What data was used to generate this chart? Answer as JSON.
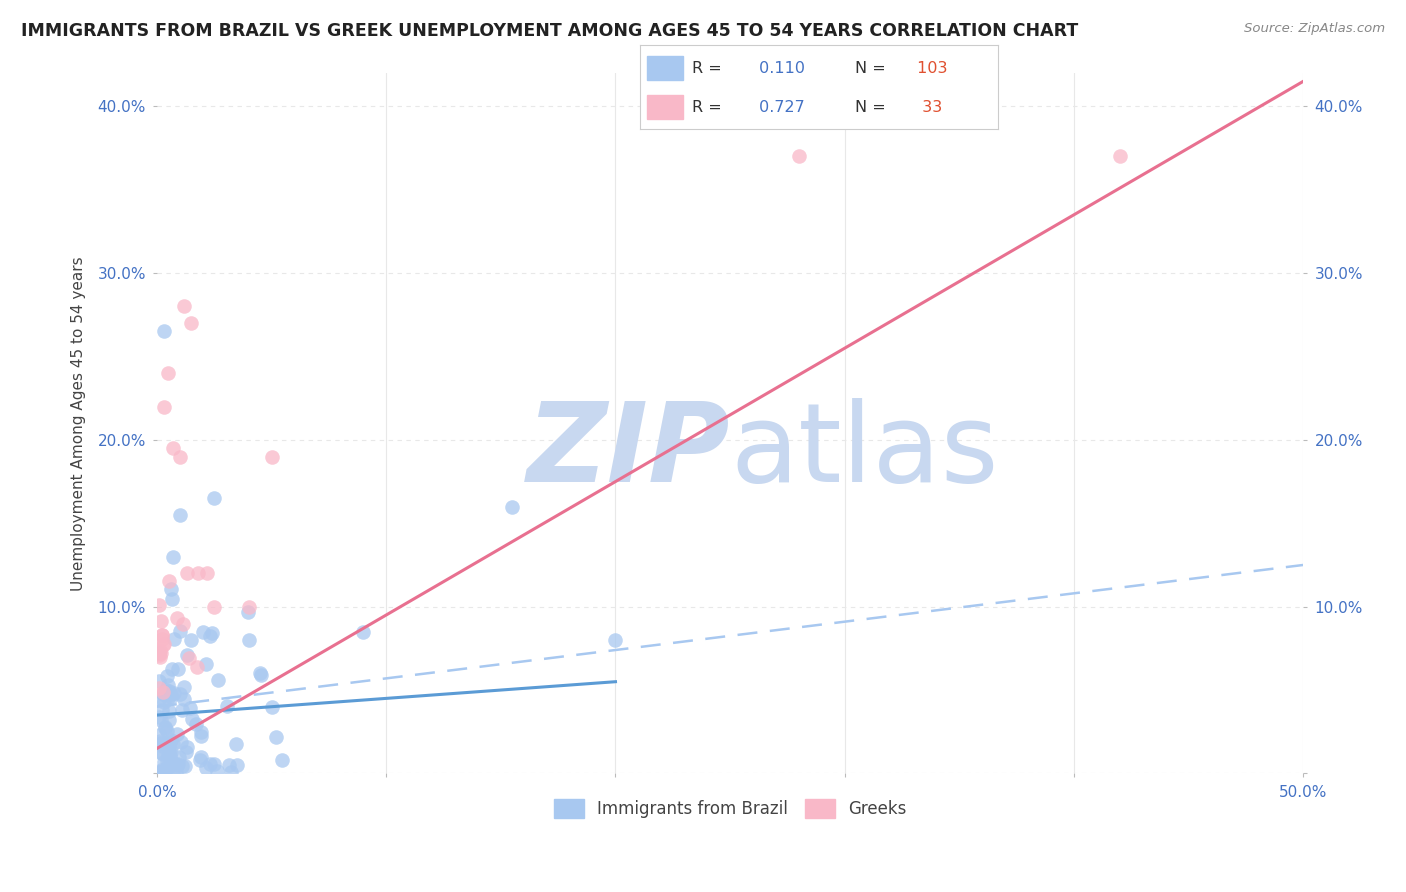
{
  "title": "IMMIGRANTS FROM BRAZIL VS GREEK UNEMPLOYMENT AMONG AGES 45 TO 54 YEARS CORRELATION CHART",
  "source": "Source: ZipAtlas.com",
  "ylabel": "Unemployment Among Ages 45 to 54 years",
  "xlim": [
    0.0,
    0.5
  ],
  "ylim": [
    0.0,
    0.42
  ],
  "xticks": [
    0.0,
    0.1,
    0.2,
    0.3,
    0.4,
    0.5
  ],
  "yticks": [
    0.0,
    0.1,
    0.2,
    0.3,
    0.4
  ],
  "xticklabels": [
    "0.0%",
    "",
    "",
    "",
    "",
    "50.0%"
  ],
  "yticklabels": [
    "",
    "10.0%",
    "20.0%",
    "30.0%",
    "40.0%"
  ],
  "legend_brazil_r": "0.110",
  "legend_brazil_n": "103",
  "legend_greeks_r": "0.727",
  "legend_greeks_n": "33",
  "color_brazil": "#a8c8f0",
  "color_greeks": "#f9b8c8",
  "color_brazil_line": "#5b9bd5",
  "color_greeks_line": "#e87090",
  "color_brazil_dashed": "#a8c8f0",
  "watermark_zip_color": "#c8d8f0",
  "watermark_atlas_color": "#c8d8f0",
  "background_color": "#ffffff",
  "grid_color": "#e8e8e8",
  "title_color": "#222222",
  "axis_label_color": "#444444",
  "tick_color": "#4472c4",
  "legend_r_color": "#4472c4",
  "legend_n_color": "#e05030"
}
